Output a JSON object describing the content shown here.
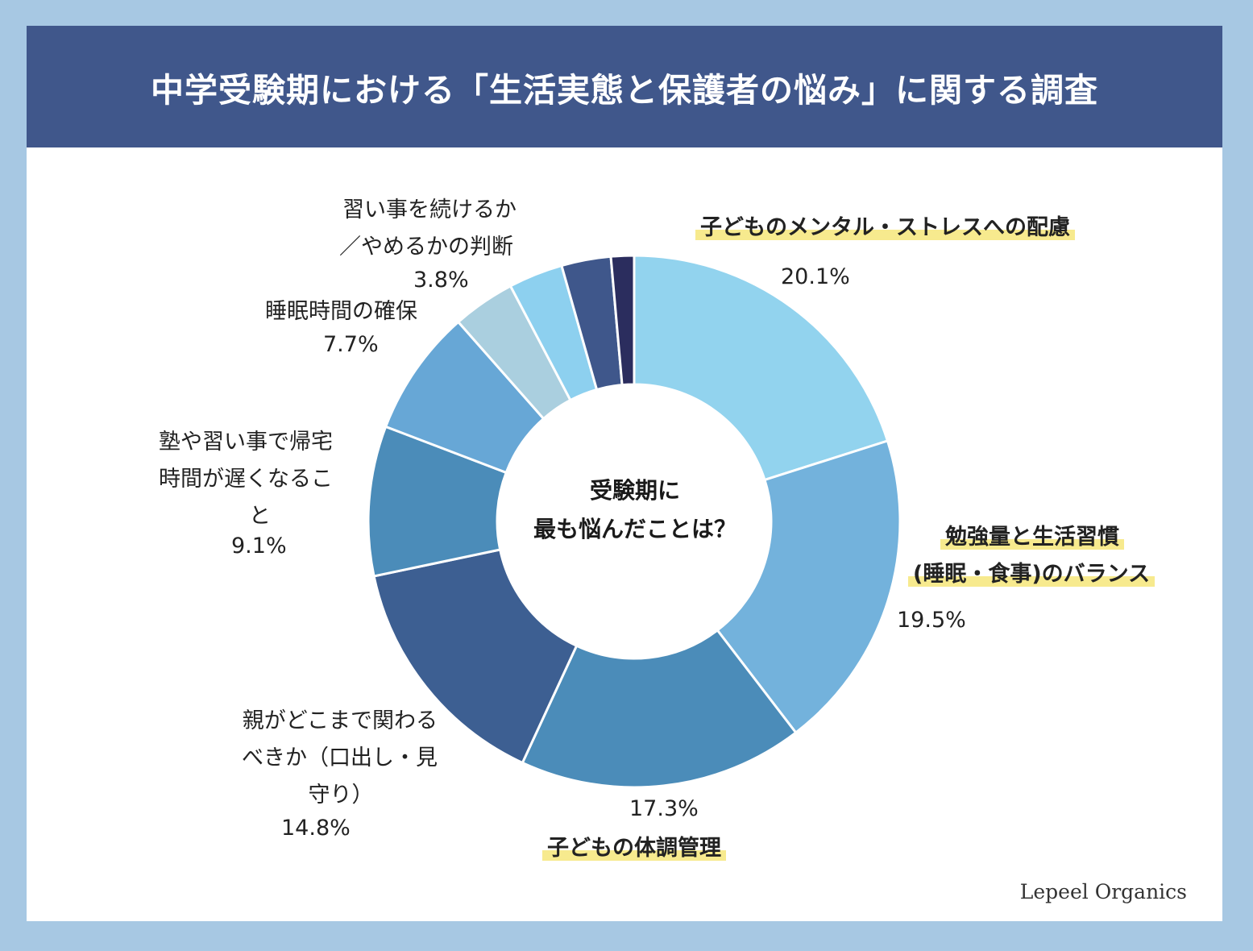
{
  "title": "中学受験期における「生活実態と保護者の悩み」に関する調査",
  "brand": "Lepeel Organics",
  "chart_data": {
    "type": "pie",
    "donut": true,
    "center_label": [
      "受験期に",
      "最も悩んだことは？"
    ],
    "slices": [
      {
        "label": [
          "子どものメンタル・ストレスへの配慮"
        ],
        "value": 20.1,
        "value_label": "20.1%",
        "color": "#92d3ee",
        "highlight": true
      },
      {
        "label": [
          "勉強量と生活習慣",
          "(睡眠・食事)のバランス"
        ],
        "value": 19.5,
        "value_label": "19.5%",
        "color": "#73b2dc",
        "highlight": true
      },
      {
        "label": [
          "子どもの体調管理"
        ],
        "value": 17.3,
        "value_label": "17.3%",
        "color": "#4b8cb9",
        "highlight": true
      },
      {
        "label": [
          "親がどこまで関わる",
          "べきか（口出し・見",
          "守り）"
        ],
        "value": 14.8,
        "value_label": "14.8%",
        "color": "#3d5f92",
        "highlight": false
      },
      {
        "label": [
          "塾や習い事で帰宅",
          "時間が遅くなるこ",
          "と"
        ],
        "value": 9.1,
        "value_label": "9.1%",
        "color": "#4b8cb9",
        "highlight": false
      },
      {
        "label": [
          "睡眠時間の確保"
        ],
        "value": 7.7,
        "value_label": "7.7%",
        "color": "#67a7d6",
        "highlight": false
      },
      {
        "label": [
          "習い事を続けるか",
          "／やめるかの判断"
        ],
        "value": 3.8,
        "value_label": "3.8%",
        "color": "#aacfdf",
        "highlight": false
      },
      {
        "label": [],
        "value": 3.3,
        "value_label": "",
        "color": "#8dd0ef",
        "highlight": false
      },
      {
        "label": [],
        "value": 3.0,
        "value_label": "",
        "color": "#3f578b",
        "highlight": false
      },
      {
        "label": [],
        "value": 1.4,
        "value_label": "",
        "color": "#2b2d5e",
        "highlight": false
      }
    ]
  }
}
